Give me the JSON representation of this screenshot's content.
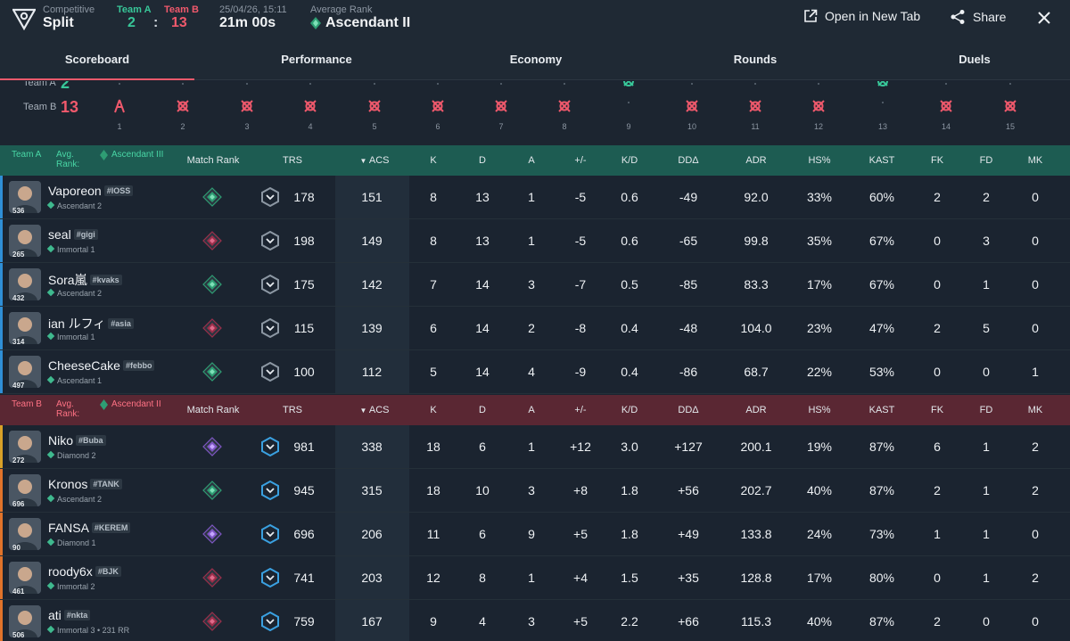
{
  "header": {
    "mode": "Competitive",
    "map": "Split",
    "team_a_label": "Team A",
    "team_b_label": "Team B",
    "team_a_score": "2",
    "score_sep": ":",
    "team_b_score": "13",
    "datetime": "25/04/26, 15:11",
    "duration": "21m 00s",
    "avg_rank_label": "Average Rank",
    "avg_rank": "Ascendant II",
    "open_new_tab": "Open in New Tab",
    "share": "Share"
  },
  "tabs": [
    "Scoreboard",
    "Performance",
    "Economy",
    "Rounds",
    "Duels"
  ],
  "rounds": {
    "team_a_label": "Team A",
    "team_a_score": "2",
    "team_b_label": "Team B",
    "team_b_score": "13",
    "numbers": [
      "1",
      "2",
      "3",
      "4",
      "5",
      "6",
      "7",
      "8",
      "9",
      "10",
      "11",
      "12",
      "13",
      "14",
      "15"
    ],
    "winners": [
      "B",
      "B",
      "B",
      "B",
      "B",
      "B",
      "B",
      "B",
      "A",
      "B",
      "B",
      "B",
      "A",
      "B",
      "B"
    ]
  },
  "columns": {
    "match_rank": "Match Rank",
    "trs": "TRS",
    "acs": "ACS",
    "k": "K",
    "d": "D",
    "a": "A",
    "pm": "+/-",
    "kd": "K/D",
    "dd": "DDΔ",
    "adr": "ADR",
    "hs": "HS%",
    "kast": "KAST",
    "fk": "FK",
    "fd": "FD",
    "mk": "MK"
  },
  "team_a": {
    "team_label": "Team A",
    "avg_label": "Avg. Rank:",
    "avg_rank": "Ascendant III",
    "players": [
      {
        "name": "Vaporeon",
        "tag": "#IOSS",
        "rank": "Ascendant 2",
        "level": "536",
        "trs": "178",
        "acs": "151",
        "k": "8",
        "d": "13",
        "a": "1",
        "pm": "-5",
        "kd": "0.6",
        "dd": "-49",
        "adr": "92.0",
        "hs": "33%",
        "kast": "60%",
        "fk": "2",
        "fd": "2",
        "mk": "0"
      },
      {
        "name": "seal",
        "tag": "#gigi",
        "rank": "Immortal 1",
        "level": "265",
        "trs": "198",
        "acs": "149",
        "k": "8",
        "d": "13",
        "a": "1",
        "pm": "-5",
        "kd": "0.6",
        "dd": "-65",
        "adr": "99.8",
        "hs": "35%",
        "kast": "67%",
        "fk": "0",
        "fd": "3",
        "mk": "0"
      },
      {
        "name": "Sora嵐",
        "tag": "#kvaks",
        "rank": "Ascendant 2",
        "level": "432",
        "trs": "175",
        "acs": "142",
        "k": "7",
        "d": "14",
        "a": "3",
        "pm": "-7",
        "kd": "0.5",
        "dd": "-85",
        "adr": "83.3",
        "hs": "17%",
        "kast": "67%",
        "fk": "0",
        "fd": "1",
        "mk": "0"
      },
      {
        "name": "ian ルフィ",
        "tag": "#asia",
        "rank": "Immortal 1",
        "level": "314",
        "trs": "115",
        "acs": "139",
        "k": "6",
        "d": "14",
        "a": "2",
        "pm": "-8",
        "kd": "0.4",
        "dd": "-48",
        "adr": "104.0",
        "hs": "23%",
        "kast": "47%",
        "fk": "2",
        "fd": "5",
        "mk": "0"
      },
      {
        "name": "CheeseCake",
        "tag": "#febbo",
        "rank": "Ascendant 1",
        "level": "497",
        "trs": "100",
        "acs": "112",
        "k": "5",
        "d": "14",
        "a": "4",
        "pm": "-9",
        "kd": "0.4",
        "dd": "-86",
        "adr": "68.7",
        "hs": "22%",
        "kast": "53%",
        "fk": "0",
        "fd": "0",
        "mk": "1"
      }
    ]
  },
  "team_b": {
    "team_label": "Team B",
    "avg_label": "Avg. Rank:",
    "avg_rank": "Ascendant II",
    "players": [
      {
        "name": "Niko",
        "tag": "#Buba",
        "rank": "Diamond 2",
        "level": "272",
        "trs": "981",
        "acs": "338",
        "k": "18",
        "d": "6",
        "a": "1",
        "pm": "+12",
        "kd": "3.0",
        "dd": "+127",
        "adr": "200.1",
        "hs": "19%",
        "kast": "87%",
        "fk": "6",
        "fd": "1",
        "mk": "2"
      },
      {
        "name": "Kronos",
        "tag": "#TANK",
        "rank": "Ascendant 2",
        "level": "696",
        "trs": "945",
        "acs": "315",
        "k": "18",
        "d": "10",
        "a": "3",
        "pm": "+8",
        "kd": "1.8",
        "dd": "+56",
        "adr": "202.7",
        "hs": "40%",
        "kast": "87%",
        "fk": "2",
        "fd": "1",
        "mk": "2"
      },
      {
        "name": "FANSA",
        "tag": "#KEREM",
        "rank": "Diamond 1",
        "level": "90",
        "trs": "696",
        "acs": "206",
        "k": "11",
        "d": "6",
        "a": "9",
        "pm": "+5",
        "kd": "1.8",
        "dd": "+49",
        "adr": "133.8",
        "hs": "24%",
        "kast": "73%",
        "fk": "1",
        "fd": "1",
        "mk": "0"
      },
      {
        "name": "roody6x",
        "tag": "#BJK",
        "rank": "Immortal 2",
        "level": "461",
        "trs": "741",
        "acs": "203",
        "k": "12",
        "d": "8",
        "a": "1",
        "pm": "+4",
        "kd": "1.5",
        "dd": "+35",
        "adr": "128.8",
        "hs": "17%",
        "kast": "80%",
        "fk": "0",
        "fd": "1",
        "mk": "2"
      },
      {
        "name": "ati",
        "tag": "#nkta",
        "rank": "Immortal 3 • 231 RR",
        "level": "506",
        "trs": "759",
        "acs": "167",
        "k": "9",
        "d": "4",
        "a": "3",
        "pm": "+5",
        "kd": "2.2",
        "dd": "+66",
        "adr": "115.3",
        "hs": "40%",
        "kast": "87%",
        "fk": "2",
        "fd": "0",
        "mk": "0"
      }
    ]
  },
  "colors": {
    "team_a": "#38c799",
    "team_b": "#f0596c",
    "accent_a": "#2f8fd6",
    "accent_b": [
      "#d9a128",
      "#e0732a",
      "#e0732a",
      "#e0732a",
      "#e0732a"
    ]
  }
}
